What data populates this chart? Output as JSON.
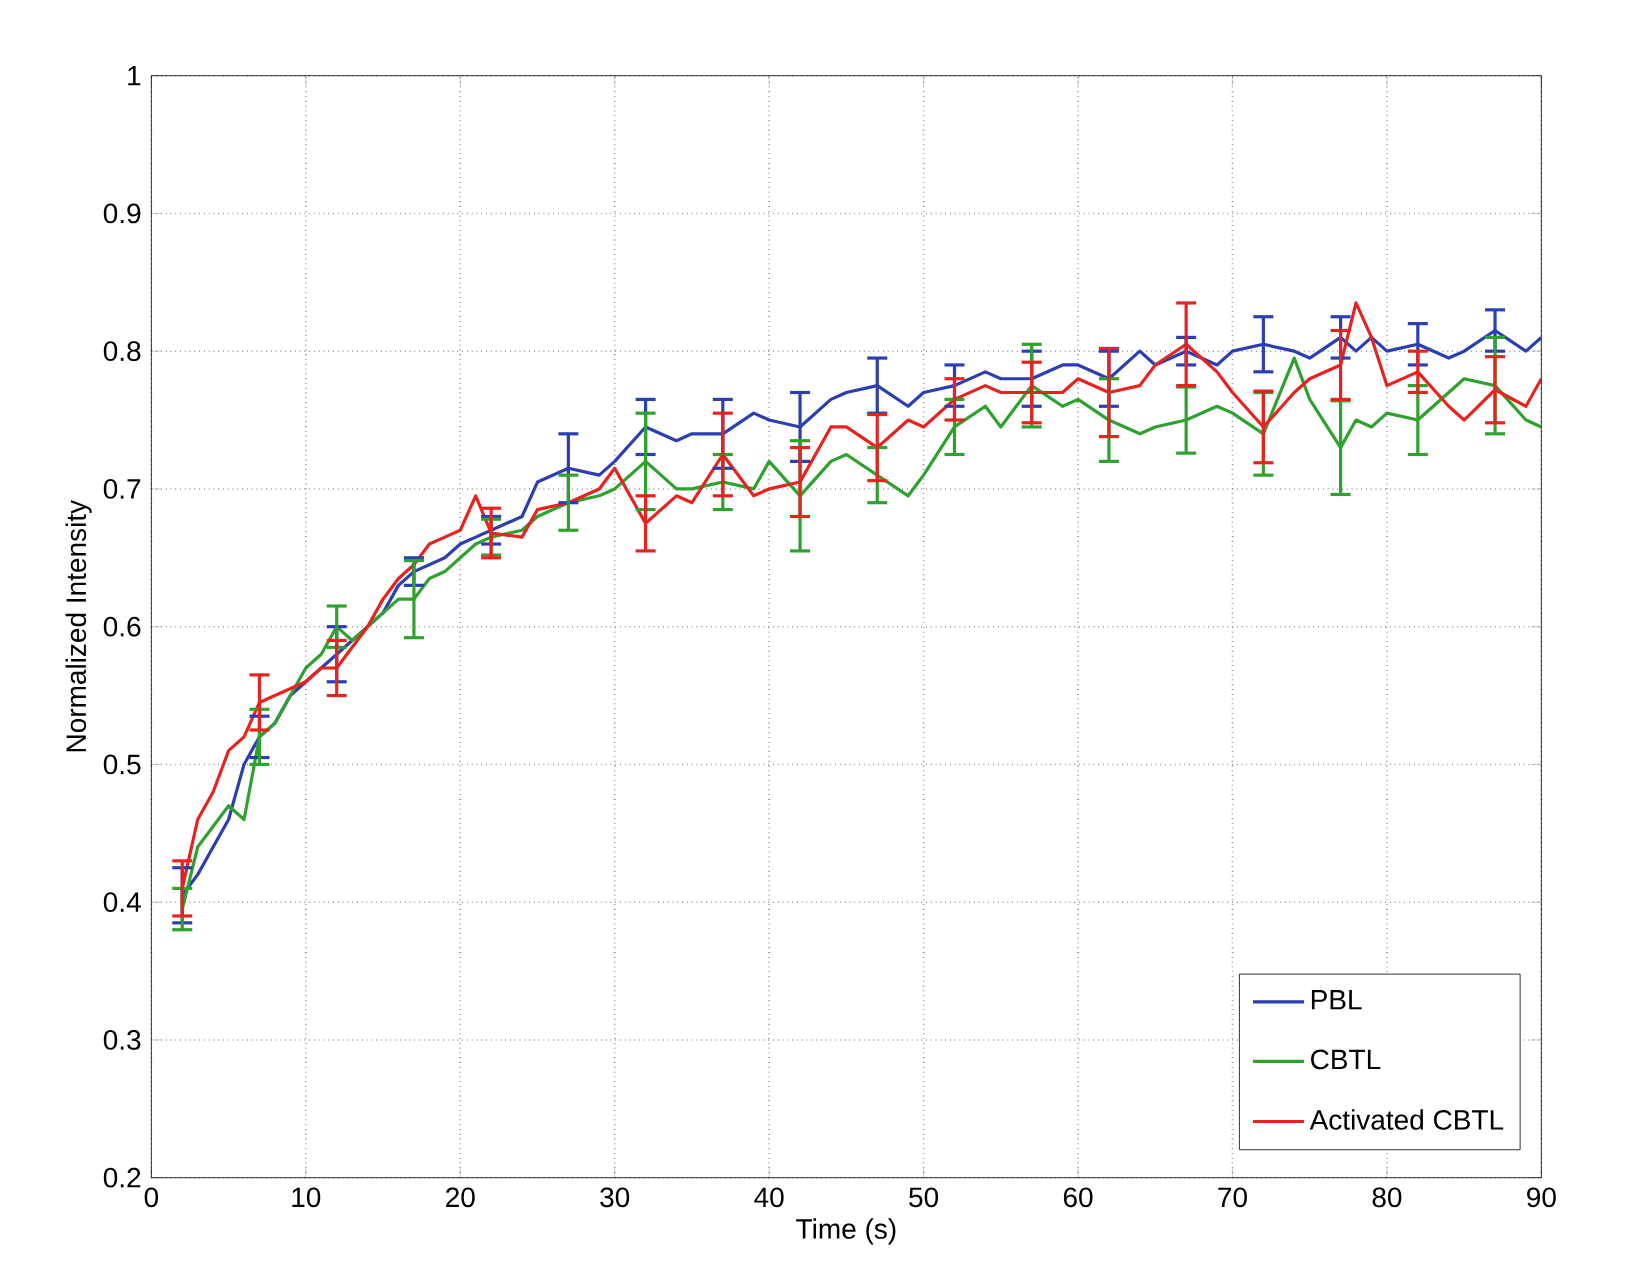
{
  "chart_data": {
    "type": "line",
    "xlabel": "Time (s)",
    "ylabel": "Normalized Intensity",
    "xlim": [
      0,
      90
    ],
    "ylim": [
      0.2,
      1
    ],
    "xticks": [
      0,
      10,
      20,
      30,
      40,
      50,
      60,
      70,
      80,
      90
    ],
    "yticks": [
      0.2,
      0.3,
      0.4,
      0.5,
      0.6,
      0.7,
      0.8,
      0.9,
      1
    ],
    "grid": true,
    "legend": "bottom right",
    "x": [
      2,
      3,
      4,
      5,
      6,
      7,
      8,
      9,
      10,
      11,
      12,
      13,
      14,
      15,
      16,
      17,
      18,
      19,
      20,
      21,
      22,
      24,
      25,
      27,
      29,
      30,
      32,
      34,
      35,
      37,
      39,
      40,
      42,
      44,
      45,
      47,
      49,
      50,
      52,
      54,
      55,
      57,
      59,
      60,
      62,
      64,
      65,
      67,
      69,
      70,
      72,
      74,
      75,
      77,
      78,
      79,
      80,
      82,
      84,
      85,
      87,
      89,
      90
    ],
    "series": [
      {
        "name": "PBL",
        "color": "#2b3fb3",
        "values": [
          0.405,
          0.42,
          0.44,
          0.46,
          0.5,
          0.52,
          0.53,
          0.55,
          0.56,
          0.57,
          0.58,
          0.59,
          0.6,
          0.61,
          0.63,
          0.64,
          0.645,
          0.65,
          0.66,
          0.665,
          0.67,
          0.68,
          0.705,
          0.715,
          0.71,
          0.72,
          0.745,
          0.735,
          0.74,
          0.74,
          0.755,
          0.75,
          0.745,
          0.765,
          0.77,
          0.775,
          0.76,
          0.77,
          0.775,
          0.785,
          0.78,
          0.78,
          0.79,
          0.79,
          0.78,
          0.8,
          0.79,
          0.8,
          0.79,
          0.8,
          0.805,
          0.8,
          0.795,
          0.81,
          0.8,
          0.81,
          0.8,
          0.805,
          0.795,
          0.8,
          0.815,
          0.8,
          0.81
        ],
        "errors": [
          0.02,
          null,
          null,
          null,
          null,
          0.015,
          null,
          null,
          null,
          null,
          0.02,
          null,
          null,
          null,
          null,
          0.01,
          null,
          null,
          null,
          null,
          0.01,
          null,
          null,
          0.025,
          null,
          null,
          0.02,
          null,
          null,
          0.025,
          null,
          null,
          0.025,
          null,
          null,
          0.02,
          null,
          null,
          0.015,
          null,
          null,
          0.02,
          null,
          null,
          0.02,
          null,
          null,
          0.01,
          null,
          null,
          0.02,
          null,
          null,
          0.015,
          null,
          null,
          null,
          0.015,
          null,
          null,
          0.015,
          null,
          null
        ]
      },
      {
        "name": "CBTL",
        "color": "#2ea12e",
        "values": [
          0.395,
          0.44,
          0.455,
          0.47,
          0.46,
          0.52,
          0.53,
          0.55,
          0.57,
          0.58,
          0.6,
          0.59,
          0.6,
          0.61,
          0.62,
          0.62,
          0.635,
          0.64,
          0.65,
          0.66,
          0.665,
          0.67,
          0.68,
          0.69,
          0.695,
          0.7,
          0.72,
          0.7,
          0.7,
          0.705,
          0.7,
          0.72,
          0.695,
          0.72,
          0.725,
          0.71,
          0.695,
          0.71,
          0.745,
          0.76,
          0.745,
          0.775,
          0.76,
          0.765,
          0.75,
          0.74,
          0.745,
          0.75,
          0.76,
          0.755,
          0.74,
          0.795,
          0.765,
          0.73,
          0.75,
          0.745,
          0.755,
          0.75,
          0.77,
          0.78,
          0.775,
          0.75,
          0.745
        ],
        "errors": [
          0.015,
          null,
          null,
          null,
          null,
          0.02,
          null,
          null,
          null,
          null,
          0.015,
          null,
          null,
          null,
          null,
          0.028,
          null,
          null,
          null,
          null,
          0.013,
          null,
          null,
          0.02,
          null,
          null,
          0.035,
          null,
          null,
          0.02,
          null,
          null,
          0.04,
          null,
          null,
          0.02,
          null,
          null,
          0.02,
          null,
          null,
          0.03,
          null,
          null,
          0.03,
          null,
          null,
          0.024,
          null,
          null,
          0.03,
          null,
          null,
          0.034,
          null,
          null,
          null,
          0.025,
          null,
          null,
          0.035,
          null,
          null
        ]
      },
      {
        "name": "Activated CBTL",
        "color": "#e8231f",
        "values": [
          0.41,
          0.46,
          0.48,
          0.51,
          0.52,
          0.545,
          0.55,
          0.555,
          0.56,
          0.57,
          0.57,
          0.585,
          0.6,
          0.62,
          0.635,
          0.645,
          0.66,
          0.665,
          0.67,
          0.695,
          0.668,
          0.665,
          0.685,
          0.69,
          0.7,
          0.715,
          0.675,
          0.695,
          0.69,
          0.725,
          0.695,
          0.7,
          0.705,
          0.745,
          0.745,
          0.73,
          0.75,
          0.745,
          0.765,
          0.775,
          0.77,
          0.77,
          0.77,
          0.78,
          0.77,
          0.775,
          0.79,
          0.805,
          0.785,
          0.77,
          0.745,
          0.77,
          0.78,
          0.79,
          0.835,
          0.81,
          0.775,
          0.785,
          0.76,
          0.75,
          0.772,
          0.76,
          0.78
        ],
        "errors": [
          0.02,
          null,
          null,
          null,
          null,
          0.02,
          null,
          null,
          null,
          null,
          0.02,
          null,
          null,
          null,
          null,
          null,
          null,
          null,
          null,
          null,
          0.018,
          null,
          null,
          null,
          null,
          null,
          0.02,
          null,
          null,
          0.03,
          null,
          null,
          0.025,
          null,
          null,
          0.024,
          null,
          null,
          0.015,
          null,
          null,
          0.022,
          null,
          null,
          0.032,
          null,
          null,
          0.03,
          null,
          null,
          0.026,
          null,
          null,
          0.025,
          null,
          null,
          null,
          0.015,
          null,
          null,
          0.024,
          null,
          null
        ]
      }
    ]
  }
}
